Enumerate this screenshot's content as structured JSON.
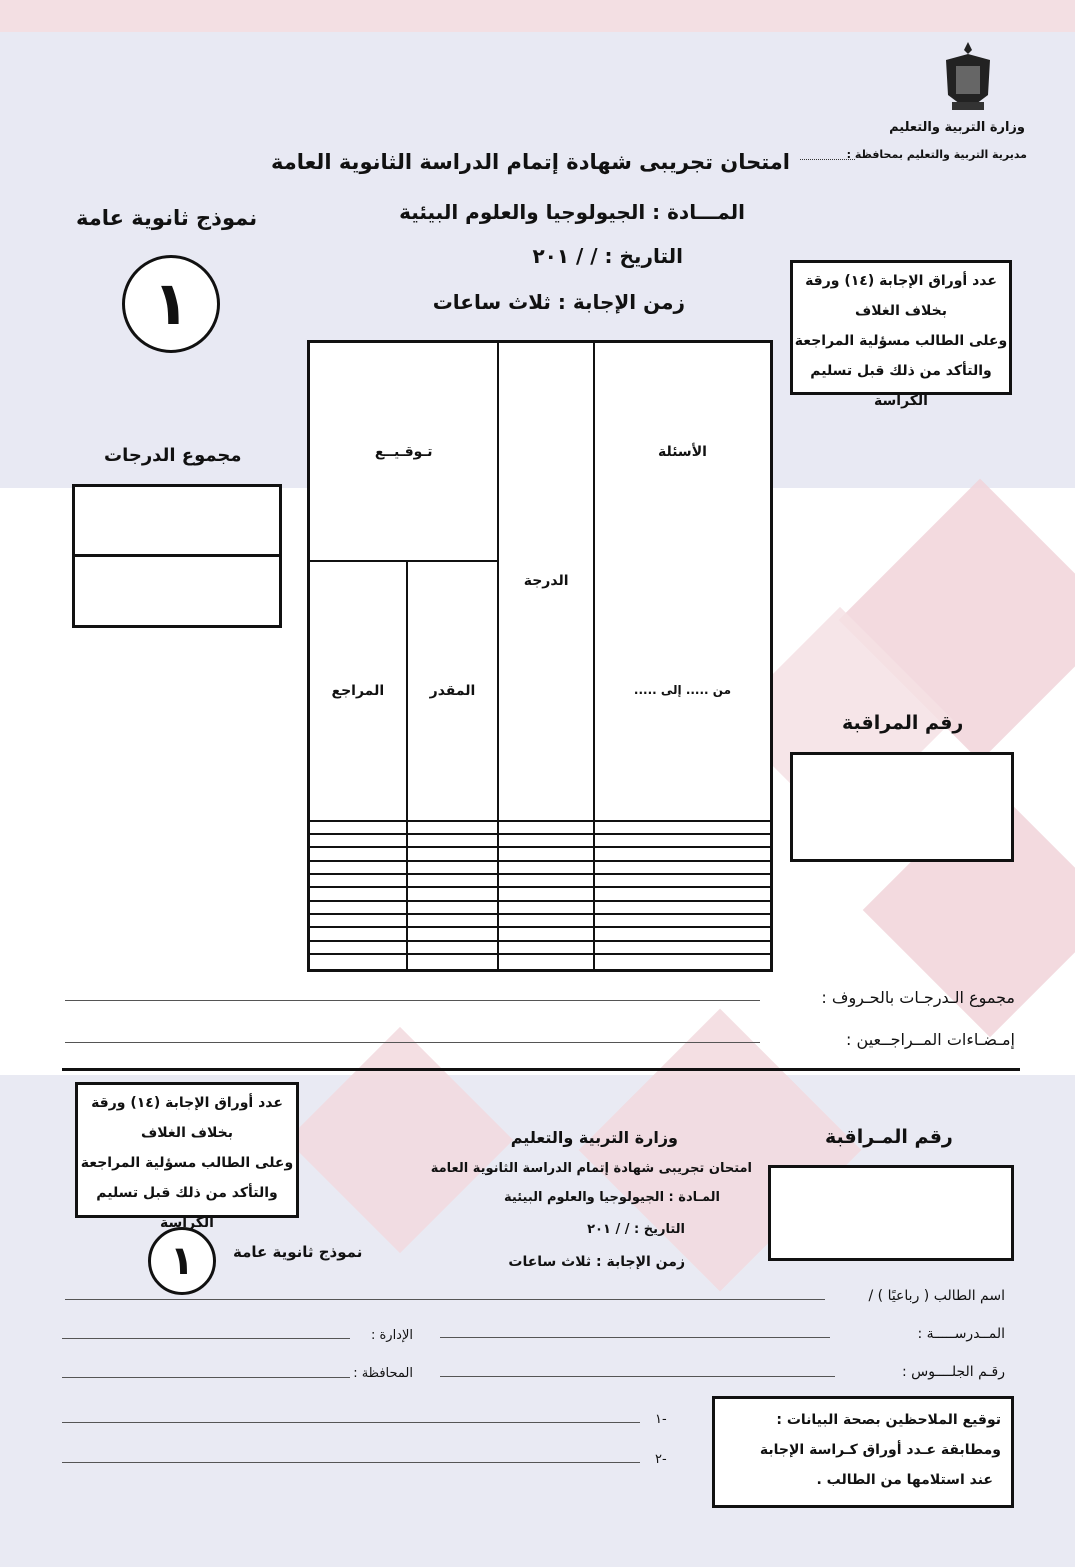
{
  "header": {
    "emblem": "egypt-eagle-emblem",
    "ministry": "وزارة التربية والتعليم",
    "directorate": "مديرية التربية والتعليم بمحافظة :",
    "exam_title": "امتحان تجريبى شهادة إتمام الدراسة الثانوية العامة",
    "subject": "المـــادة :  الجيولوجيا والعلوم البيئية",
    "date": "التاريخ :    /   /   ٢٠١",
    "duration": "زمن الإجابة :  ثلاث ساعات",
    "model_label": "نموذج ثانوية عامة",
    "model_number": "١"
  },
  "notice_box": {
    "lines": [
      "عدد أوراق الإجابة (١٤) ورقة",
      "بخلاف الغلاف",
      "وعلى الطالب مسؤلية المراجعة",
      "والتأكد من ذلك قبل تسليم الكراسة"
    ]
  },
  "grades_table": {
    "col_questions": "الأسئلة",
    "col_questions_range": "من ..... إلى .....",
    "col_grade": "الدرجة",
    "col_signature": "تـوقـيــع",
    "col_grader": "المقدر",
    "col_reviewer": "المراجع",
    "rows": 11
  },
  "total_grades_label": "مجموع الدرجات",
  "control_number_label": "رقم المراقبة",
  "total_in_words_label": "مجموع الـدرجـات بالحـروف :",
  "reviewers_signatures_label": "إمـضـاءات المــراجــعين :",
  "slip": {
    "control_number_label": "رقم المـراقبة",
    "ministry": "وزارة التربية والتعليم",
    "exam_title": "امتحان تجريبى شهادة إتمام الدراسة الثانوية العامة",
    "subject": "المـادة :  الجيولوجيا والعلوم البيئية",
    "date": "التاريخ :   /   /   ٢٠١",
    "duration": "زمن الإجابة :  ثلاث ساعات",
    "model_label": "نموذج ثانوية عامة",
    "model_number": "١",
    "notice_lines": [
      "عدد أوراق الإجابة (١٤) ورقة",
      "بخلاف الغلاف",
      "وعلى الطالب مسؤلية المراجعة",
      "والتأكد من ذلك قبل تسليم الكراسة"
    ],
    "student_name_label": "اسم الطالب ( رباعيًا ) /",
    "school_label": "المــدرســـــة :",
    "administration_label": "الإدارة :",
    "seat_number_label": "رقـم الجلــــوس :",
    "governorate_label": "المحافظة :",
    "observers_box_lines": [
      "توقيع الملاحظين بصحة البيانات :",
      "ومطابقة عـدد أوراق كـراسة الإجابة",
      "عند استلامها من الطالب ."
    ],
    "observer_1": "-١",
    "observer_2": "-٢"
  }
}
